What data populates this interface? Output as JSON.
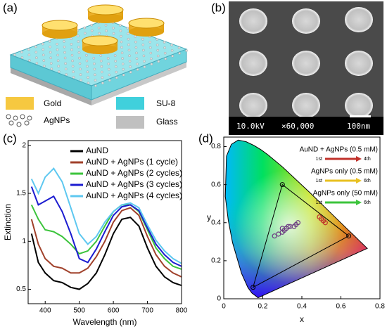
{
  "schematic": {
    "label": "(a)",
    "legend": [
      "Gold",
      "SU-8",
      "AgNPs",
      "Glass"
    ]
  },
  "micrograph": {
    "label": "(b)",
    "voltage": "10.0kV",
    "magnification": "×60,000",
    "scale_bar": "100nm"
  },
  "chart_data": [
    {
      "type": "line",
      "label": "(c)",
      "x_label": "Wavelength (nm)",
      "y_label": "Extinction",
      "x": [
        360,
        380,
        400,
        425,
        450,
        475,
        500,
        525,
        550,
        575,
        600,
        625,
        650,
        675,
        700,
        725,
        750,
        775,
        800
      ],
      "xlim": [
        350,
        800
      ],
      "xticks": [
        400,
        500,
        600,
        700,
        800
      ],
      "ylim": [
        0.35,
        2.05
      ],
      "yticks": [
        0.5,
        1,
        1.5,
        2
      ],
      "series": [
        {
          "name": "AuND",
          "color": "#000000",
          "values": [
            1.08,
            0.78,
            0.67,
            0.59,
            0.57,
            0.52,
            0.5,
            0.56,
            0.67,
            0.86,
            1.08,
            1.23,
            1.25,
            1.16,
            0.93,
            0.74,
            0.63,
            0.57,
            0.54
          ]
        },
        {
          "name": "AuND + AgNPs (1 cycle)",
          "color": "#a0402a",
          "values": [
            1.23,
            0.97,
            0.82,
            0.74,
            0.72,
            0.67,
            0.67,
            0.72,
            0.84,
            1.0,
            1.2,
            1.32,
            1.35,
            1.27,
            1.05,
            0.86,
            0.74,
            0.67,
            0.63
          ]
        },
        {
          "name": "AuND + AgNPs (2 cycles)",
          "color": "#3cc43c",
          "values": [
            1.38,
            1.23,
            1.12,
            1.1,
            1.05,
            0.97,
            0.87,
            0.9,
            1.0,
            1.16,
            1.31,
            1.38,
            1.38,
            1.31,
            1.12,
            0.93,
            0.82,
            0.74,
            0.71
          ]
        },
        {
          "name": "AuND + AgNPs (3 cycles)",
          "color": "#1c1cd0",
          "values": [
            1.57,
            1.38,
            1.42,
            1.47,
            1.31,
            1.08,
            0.82,
            0.78,
            0.92,
            1.1,
            1.27,
            1.36,
            1.38,
            1.32,
            1.14,
            0.97,
            0.86,
            0.78,
            0.74
          ]
        },
        {
          "name": "AuND + AgNPs (4 cycles)",
          "color": "#5ec8f0",
          "values": [
            1.65,
            1.5,
            1.67,
            1.76,
            1.62,
            1.35,
            1.08,
            0.97,
            1.05,
            1.2,
            1.31,
            1.38,
            1.4,
            1.35,
            1.17,
            1.01,
            0.9,
            0.82,
            0.77
          ]
        }
      ]
    },
    {
      "type": "scatter",
      "label": "(d)",
      "x_label": "x",
      "y_label": "y",
      "xlim": [
        0,
        0.8
      ],
      "xticks": [
        0,
        0.2,
        0.4,
        0.6,
        0.8
      ],
      "ylim": [
        0,
        0.85
      ],
      "yticks": [
        0,
        0.2,
        0.4,
        0.6,
        0.8
      ],
      "locus": {
        "x": [
          0.175,
          0.17,
          0.144,
          0.124,
          0.091,
          0.045,
          0.023,
          0.008,
          0.014,
          0.039,
          0.074,
          0.114,
          0.155,
          0.193,
          0.23,
          0.302,
          0.373,
          0.444,
          0.512,
          0.575,
          0.627,
          0.666,
          0.692,
          0.735
        ],
        "y": [
          0.005,
          0.01,
          0.03,
          0.058,
          0.133,
          0.295,
          0.413,
          0.538,
          0.75,
          0.812,
          0.834,
          0.826,
          0.806,
          0.782,
          0.754,
          0.692,
          0.624,
          0.555,
          0.487,
          0.424,
          0.372,
          0.334,
          0.308,
          0.265
        ]
      },
      "gamut": {
        "x": [
          0.64,
          0.3,
          0.15
        ],
        "y": [
          0.33,
          0.6,
          0.06
        ]
      },
      "series": [
        {
          "name": "AuND + AgNPs (0.5 mM)",
          "color": "#c0302a",
          "arrow_labels": [
            "1st",
            "4th"
          ],
          "x": [
            0.49,
            0.5,
            0.51,
            0.52
          ],
          "y": [
            0.43,
            0.42,
            0.41,
            0.4
          ]
        },
        {
          "name": "AgNPs only (0.5 mM)",
          "color": "#e8c020",
          "arrow_labels": [
            "1st",
            "6th"
          ],
          "x": [
            0.3,
            0.32,
            0.34,
            0.36,
            0.37,
            0.38
          ],
          "y": [
            0.37,
            0.37,
            0.38,
            0.38,
            0.39,
            0.4
          ]
        },
        {
          "name": "AgNPs only (50 mM)",
          "color": "#3cc43c",
          "arrow_labels": [
            "1st",
            "6th"
          ],
          "x": [
            0.26,
            0.28,
            0.3,
            0.31,
            0.32,
            0.33
          ],
          "y": [
            0.33,
            0.34,
            0.35,
            0.36,
            0.37,
            0.38
          ]
        }
      ]
    }
  ]
}
